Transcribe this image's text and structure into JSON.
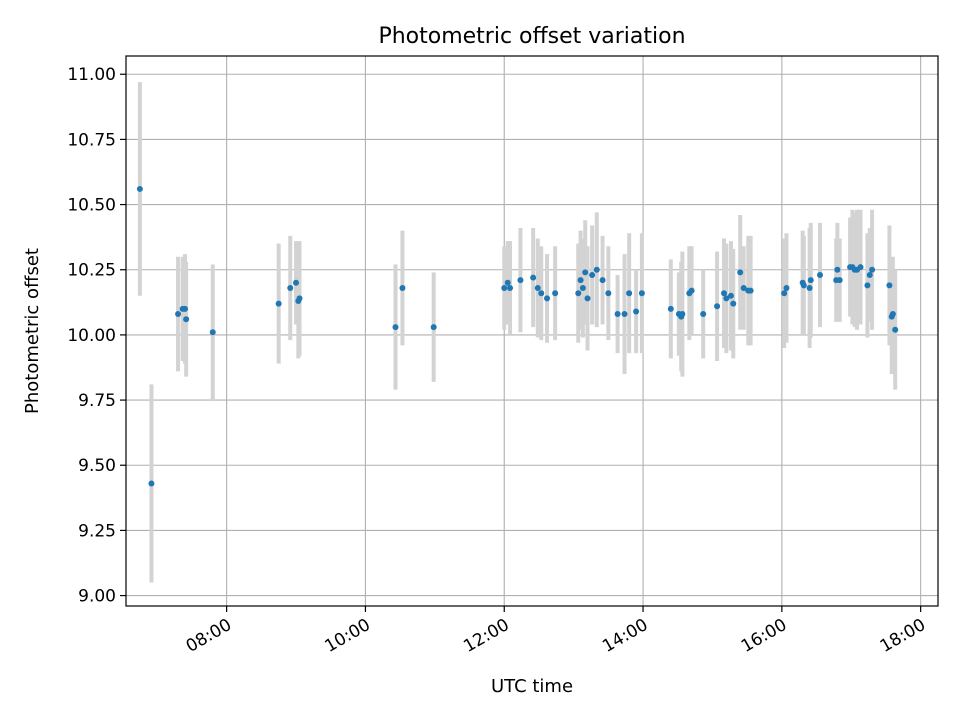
{
  "chart_data": {
    "type": "scatter",
    "title": "Photometric offset variation",
    "xlabel": "UTC time",
    "ylabel": "Photometric offset",
    "xlim": [
      "06:33",
      "18:15"
    ],
    "ylim": [
      8.96,
      11.07
    ],
    "x_ticks": [
      "08:00",
      "10:00",
      "12:00",
      "14:00",
      "16:00",
      "18:00"
    ],
    "y_ticks": [
      "9.00",
      "9.25",
      "9.50",
      "9.75",
      "10.00",
      "10.25",
      "10.50",
      "10.75",
      "11.00"
    ],
    "grid": true,
    "colors": {
      "points": "#1f77b4",
      "errorbars": "#d3d3d3",
      "grid": "#b0b0b0"
    },
    "series": [
      {
        "x": [
          "06:45",
          "06:55",
          "07:18",
          "07:22",
          "07:24",
          "07:25",
          "07:48",
          "08:45",
          "08:55",
          "09:00",
          "09:02",
          "09:03",
          "10:26",
          "10:32",
          "10:59",
          "12:00",
          "12:03",
          "12:05",
          "12:14",
          "12:25",
          "12:29",
          "12:32",
          "12:37",
          "12:44",
          "13:04",
          "13:06",
          "13:08",
          "13:10",
          "13:12",
          "13:16",
          "13:20",
          "13:25",
          "13:30",
          "13:38",
          "13:44",
          "13:48",
          "13:54",
          "13:59",
          "14:24",
          "14:31",
          "14:33",
          "14:34",
          "14:40",
          "14:42",
          "14:52",
          "15:04",
          "15:10",
          "15:12",
          "15:16",
          "15:18",
          "15:24",
          "15:27",
          "15:31",
          "15:33",
          "16:02",
          "16:04",
          "16:18",
          "16:19",
          "16:24",
          "16:25",
          "16:33",
          "16:47",
          "16:48",
          "16:50",
          "16:59",
          "17:01",
          "17:03",
          "17:05",
          "17:08",
          "17:14",
          "17:16",
          "17:18",
          "17:33",
          "17:35",
          "17:36",
          "17:38"
        ],
        "y": [
          10.56,
          9.43,
          10.08,
          10.1,
          10.1,
          10.06,
          10.01,
          10.12,
          10.18,
          10.2,
          10.13,
          10.14,
          10.03,
          10.18,
          10.03,
          10.18,
          10.2,
          10.18,
          10.21,
          10.22,
          10.18,
          10.16,
          10.14,
          10.16,
          10.16,
          10.21,
          10.18,
          10.24,
          10.14,
          10.23,
          10.25,
          10.21,
          10.16,
          10.08,
          10.08,
          10.16,
          10.09,
          10.16,
          10.1,
          10.08,
          10.07,
          10.08,
          10.16,
          10.17,
          10.08,
          10.11,
          10.16,
          10.14,
          10.15,
          10.12,
          10.24,
          10.18,
          10.17,
          10.17,
          10.16,
          10.18,
          10.2,
          10.19,
          10.18,
          10.21,
          10.23,
          10.21,
          10.25,
          10.21,
          10.26,
          10.26,
          10.25,
          10.25,
          10.26,
          10.19,
          10.23,
          10.25,
          10.19,
          10.07,
          10.08,
          10.02
        ],
        "err": [
          0.41,
          0.38,
          0.22,
          0.2,
          0.21,
          0.22,
          0.26,
          0.23,
          0.2,
          0.16,
          0.22,
          0.22,
          0.24,
          0.22,
          0.21,
          0.16,
          0.16,
          0.18,
          0.2,
          0.19,
          0.19,
          0.18,
          0.17,
          0.18,
          0.19,
          0.19,
          0.19,
          0.2,
          0.2,
          0.19,
          0.22,
          0.17,
          0.18,
          0.15,
          0.23,
          0.23,
          0.16,
          0.23,
          0.19,
          0.16,
          0.21,
          0.24,
          0.18,
          0.17,
          0.17,
          0.21,
          0.21,
          0.21,
          0.21,
          0.21,
          0.22,
          0.16,
          0.21,
          0.21,
          0.21,
          0.21,
          0.2,
          0.19,
          0.23,
          0.22,
          0.2,
          0.16,
          0.18,
          0.16,
          0.19,
          0.22,
          0.22,
          0.23,
          0.22,
          0.2,
          0.18,
          0.23,
          0.23,
          0.22,
          0.22,
          0.23
        ]
      }
    ]
  }
}
